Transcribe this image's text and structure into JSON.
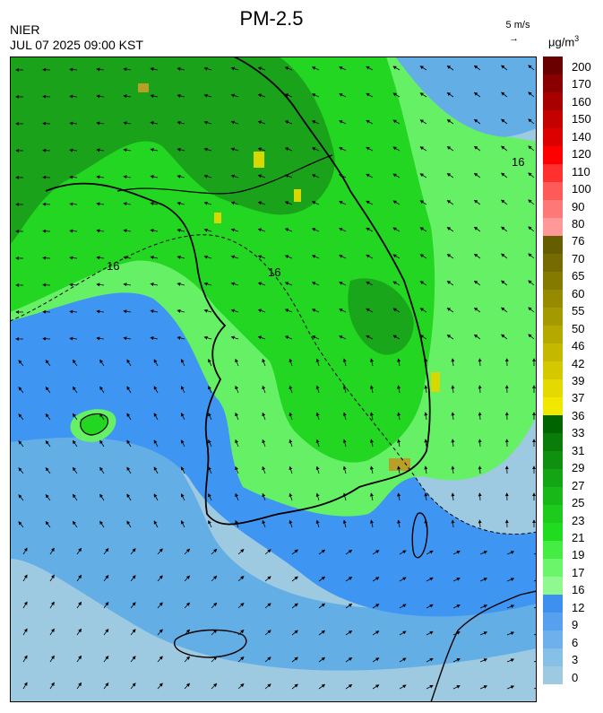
{
  "header": {
    "organization": "NIER",
    "datetime": "JUL 07 2025 09:00 KST",
    "title": "PM-2.5",
    "wind_reference": "5 m/s",
    "wind_arrow_glyph": "→",
    "unit_base": "μg/m",
    "unit_exp": "3"
  },
  "map": {
    "contour_label": "16",
    "colors": {
      "ocean_light": "#9ecae1",
      "ocean_mid": "#64aee6",
      "ocean_blue": "#3e96f2",
      "green_light": "#66f066",
      "green": "#22d622",
      "green_dark": "#199a19",
      "yellow": "#d8d800",
      "olive": "#b8a028",
      "border": "#000000"
    }
  },
  "legend": {
    "labels": [
      "200",
      "170",
      "160",
      "150",
      "140",
      "120",
      "110",
      "100",
      "90",
      "80",
      "76",
      "70",
      "65",
      "60",
      "55",
      "50",
      "46",
      "42",
      "39",
      "37",
      "36",
      "33",
      "31",
      "29",
      "27",
      "25",
      "23",
      "21",
      "19",
      "17",
      "16",
      "12",
      "9",
      "6",
      "3",
      "0"
    ],
    "colors": [
      "#6b0000",
      "#8a0000",
      "#a80000",
      "#c40000",
      "#dd0000",
      "#ff0000",
      "#ff3030",
      "#ff5a5a",
      "#ff7878",
      "#ff9898",
      "#665c00",
      "#756b00",
      "#857a00",
      "#958a00",
      "#a59900",
      "#b5a900",
      "#c4b900",
      "#d4c900",
      "#e4d900",
      "#f0e800",
      "#006400",
      "#0a7c0a",
      "#0f900f",
      "#14a514",
      "#18b818",
      "#1ccb1c",
      "#20dc20",
      "#44ec44",
      "#6af56a",
      "#8ff88f",
      "#3d8ff0",
      "#57a0f0",
      "#6db0ec",
      "#86c0e6",
      "#9ecae1"
    ]
  }
}
